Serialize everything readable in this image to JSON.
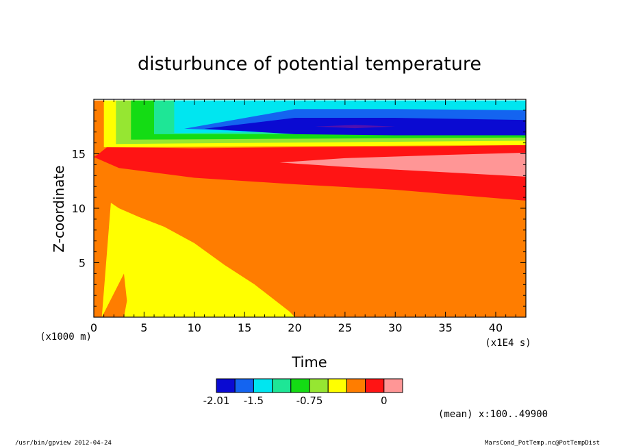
{
  "app": {
    "footer_left": "/usr/bin/gpview  2012-04-24",
    "footer_right": "MarsCond_PotTemp.nc@PotTempDist"
  },
  "chart_data": {
    "type": "heatmap",
    "title": "disturbunce of potential temperature",
    "xlabel": "Time",
    "ylabel": "Z-coordinate",
    "x_unit_label": "(x1E4 s)",
    "y_unit_label": "(x1000 m)",
    "xlim": [
      0,
      43
    ],
    "ylim": [
      0,
      20
    ],
    "x_ticks": [
      0,
      5,
      10,
      15,
      20,
      25,
      30,
      35,
      40
    ],
    "y_ticks": [
      5,
      10,
      15
    ],
    "note": "(mean) x:100..49900",
    "colorbar": {
      "colors": [
        "#0a0ad2",
        "#1464f0",
        "#00e6f0",
        "#1ee696",
        "#14dc14",
        "#96e632",
        "#ffff00",
        "#ff7d00",
        "#ff1414",
        "#ff9696"
      ],
      "tick_labels": [
        "-2.01",
        "-1.5",
        "-0.75",
        "0"
      ],
      "tick_box_index": [
        0,
        2,
        5,
        9
      ]
    },
    "regions": [
      {
        "level": "orange",
        "color": "#ff7d00",
        "points": [
          [
            0,
            0
          ],
          [
            43,
            0
          ],
          [
            43,
            19.9
          ],
          [
            0,
            19.9
          ]
        ]
      },
      {
        "level": "yellow-lower",
        "color": "#ffff00",
        "points": [
          [
            0.8,
            0
          ],
          [
            1.7,
            10.5
          ],
          [
            2.5,
            10
          ],
          [
            4.5,
            9.2
          ],
          [
            7,
            8.3
          ],
          [
            10,
            6.8
          ],
          [
            13,
            4.8
          ],
          [
            16,
            3
          ],
          [
            19.5,
            0.5
          ],
          [
            20,
            0
          ],
          [
            3,
            0
          ],
          [
            3.3,
            1.5
          ],
          [
            3,
            4
          ]
        ]
      },
      {
        "level": "red",
        "color": "#ff1414",
        "points": [
          [
            0,
            14.7
          ],
          [
            2.5,
            13.7
          ],
          [
            10,
            12.8
          ],
          [
            20,
            12.2
          ],
          [
            30,
            11.7
          ],
          [
            43,
            10.7
          ],
          [
            43,
            15.8
          ],
          [
            35,
            15.7
          ],
          [
            20,
            15.6
          ],
          [
            10,
            15.5
          ],
          [
            1.3,
            15.6
          ],
          [
            0.5,
            15
          ]
        ]
      },
      {
        "level": "pink",
        "color": "#ff9696",
        "points": [
          [
            18.5,
            14.2
          ],
          [
            25,
            13.8
          ],
          [
            35,
            13.3
          ],
          [
            43,
            12.9
          ],
          [
            43,
            15.1
          ],
          [
            35,
            14.9
          ],
          [
            25,
            14.6
          ]
        ]
      },
      {
        "level": "yellow-upper-band",
        "color": "#ffff00",
        "points": [
          [
            1,
            15.6
          ],
          [
            43,
            15.8
          ],
          [
            43,
            19.9
          ],
          [
            1,
            19.9
          ]
        ]
      },
      {
        "level": "light-green",
        "color": "#96e632",
        "points": [
          [
            2.2,
            15.9
          ],
          [
            43,
            16.2
          ],
          [
            43,
            19.9
          ],
          [
            2.2,
            19.9
          ]
        ]
      },
      {
        "level": "green",
        "color": "#14dc14",
        "points": [
          [
            3.7,
            16.3
          ],
          [
            43,
            16.5
          ],
          [
            43,
            19.9
          ],
          [
            3.7,
            19.9
          ]
        ]
      },
      {
        "level": "green-cyan",
        "color": "#1ee696",
        "points": [
          [
            6,
            16.8
          ],
          [
            43,
            16.8
          ],
          [
            43,
            19.9
          ],
          [
            6,
            19.9
          ]
        ]
      },
      {
        "level": "cyan",
        "color": "#00e6f0",
        "points": [
          [
            8,
            16.9
          ],
          [
            20,
            17
          ],
          [
            43,
            17
          ],
          [
            43,
            19.9
          ],
          [
            20,
            19.9
          ],
          [
            8,
            19.9
          ]
        ]
      },
      {
        "level": "blue",
        "color": "#1464f0",
        "points": [
          [
            9,
            17.3
          ],
          [
            20,
            16.9
          ],
          [
            30,
            16.9
          ],
          [
            43,
            16.8
          ],
          [
            43,
            19
          ],
          [
            30,
            19.1
          ],
          [
            20,
            19.1
          ]
        ]
      },
      {
        "level": "dark-blue",
        "color": "#0a0ad2",
        "points": [
          [
            11,
            17.3
          ],
          [
            20,
            16.8
          ],
          [
            30,
            16.7
          ],
          [
            43,
            16.7
          ],
          [
            43,
            18.1
          ],
          [
            30,
            18.3
          ],
          [
            20,
            18.3
          ]
        ]
      },
      {
        "level": "violet",
        "color": "#5010b0",
        "points": [
          [
            22,
            17.5
          ],
          [
            26,
            17.35
          ],
          [
            30,
            17.5
          ],
          [
            26,
            17.65
          ]
        ]
      }
    ]
  }
}
